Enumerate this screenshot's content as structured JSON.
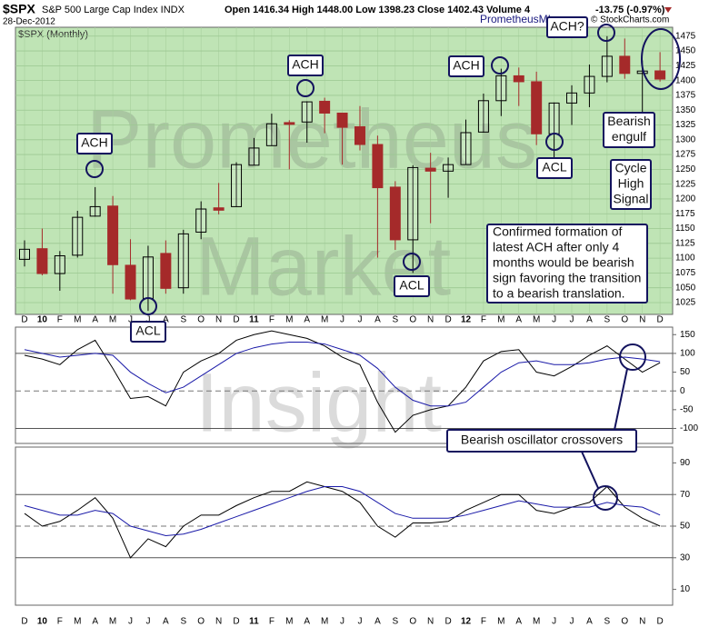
{
  "header": {
    "symbol": "$SPX",
    "name": "S&P 500 Large Cap Index INDX",
    "date": "28-Dec-2012",
    "quote": "Open 1416.34  High 1448.00  Low 1398.23  Close 1402.43  Volume 4",
    "change": "-13.75 (-0.97%)",
    "site": "PrometheusMI.com",
    "credit": "© StockCharts.com"
  },
  "watermark": [
    "Prometheus",
    "Market",
    "Insight"
  ],
  "annotations": [
    [
      "ACH"
    ],
    [
      "ACH"
    ],
    [
      "ACH"
    ],
    [
      "ACH?"
    ],
    [
      "ACL"
    ],
    [
      "ACL"
    ],
    [
      "ACL"
    ],
    [
      "Bearish",
      "engulf"
    ],
    [
      "Cycle",
      "High",
      "Signal"
    ],
    [
      "Confirmed formation of",
      "latest ACH after only 4",
      "months would be bearish",
      "sign favoring the transition",
      "to a bearish translation."
    ],
    [
      "Bearish oscillator crossovers"
    ]
  ],
  "chart_data": [
    {
      "type": "candlestick",
      "title": "$SPX (Monthly)",
      "categories": [
        "D",
        "10",
        "F",
        "M",
        "A",
        "M",
        "J",
        "J",
        "A",
        "S",
        "O",
        "N",
        "D",
        "11",
        "F",
        "M",
        "A",
        "M",
        "J",
        "J",
        "A",
        "S",
        "O",
        "N",
        "D",
        "12",
        "F",
        "M",
        "A",
        "M",
        "J",
        "J",
        "A",
        "S",
        "O",
        "N",
        "D"
      ],
      "open": [
        1098,
        1116,
        1074,
        1105,
        1171,
        1188,
        1088,
        1032,
        1108,
        1050,
        1144,
        1185,
        1187,
        1257,
        1290,
        1329,
        1330,
        1365,
        1345,
        1322,
        1292,
        1220,
        1131,
        1252,
        1247,
        1258,
        1313,
        1366,
        1408,
        1398,
        1310,
        1362,
        1379,
        1407,
        1441,
        1412,
        1416.34
      ],
      "high": [
        1130,
        1150,
        1112,
        1180,
        1220,
        1205,
        1132,
        1121,
        1130,
        1148,
        1196,
        1227,
        1262,
        1303,
        1344,
        1333,
        1365,
        1371,
        1345,
        1357,
        1307,
        1230,
        1257,
        1278,
        1270,
        1334,
        1378,
        1420,
        1422,
        1415,
        1363,
        1392,
        1427,
        1475,
        1471,
        1434,
        1448
      ],
      "low": [
        1086,
        1071,
        1045,
        1101,
        1170,
        1040,
        1029,
        1011,
        1040,
        1040,
        1132,
        1174,
        1187,
        1257,
        1290,
        1250,
        1295,
        1311,
        1258,
        1282,
        1101,
        1114,
        1075,
        1159,
        1202,
        1258,
        1312,
        1340,
        1357,
        1291,
        1267,
        1325,
        1355,
        1397,
        1403,
        1343,
        1398.23
      ],
      "close": [
        1115,
        1074,
        1104,
        1169,
        1187,
        1089,
        1031,
        1102,
        1049,
        1141,
        1183,
        1181,
        1258,
        1286,
        1327,
        1326,
        1364,
        1345,
        1321,
        1292,
        1219,
        1131,
        1253,
        1247,
        1258,
        1312,
        1366,
        1408,
        1398,
        1310,
        1362,
        1379,
        1407,
        1441,
        1412,
        1416,
        1402.43
      ],
      "up_color": "#ffffff",
      "down_color": "#a52a2a",
      "background": "#bfe4b5",
      "ylim": [
        1005,
        1490
      ],
      "yticks": [
        1025,
        1050,
        1075,
        1100,
        1125,
        1150,
        1175,
        1200,
        1225,
        1250,
        1275,
        1300,
        1325,
        1350,
        1375,
        1400,
        1425,
        1450,
        1475
      ]
    },
    {
      "type": "line",
      "series": [
        {
          "color": "#000000",
          "values": [
            95,
            85,
            70,
            110,
            135,
            60,
            -20,
            -15,
            -40,
            50,
            80,
            100,
            135,
            150,
            160,
            150,
            140,
            120,
            90,
            70,
            -30,
            -110,
            -65,
            -50,
            -40,
            10,
            80,
            105,
            110,
            50,
            40,
            65,
            95,
            120,
            85,
            50,
            75
          ]
        },
        {
          "color": "#1a1aa8",
          "values": [
            110,
            100,
            90,
            95,
            100,
            95,
            50,
            20,
            -5,
            10,
            40,
            70,
            100,
            115,
            125,
            130,
            130,
            125,
            110,
            95,
            60,
            10,
            -25,
            -40,
            -40,
            -30,
            10,
            50,
            75,
            80,
            70,
            70,
            75,
            85,
            90,
            85,
            78
          ]
        }
      ],
      "ylim": [
        -140,
        170
      ],
      "yticks": [
        -100,
        -50,
        0,
        50,
        100,
        150
      ],
      "reference_lines": [
        -100,
        100
      ],
      "center_line": 0
    },
    {
      "type": "line",
      "series": [
        {
          "color": "#000000",
          "values": [
            58,
            50,
            53,
            60,
            68,
            55,
            30,
            42,
            37,
            50,
            57,
            57,
            63,
            68,
            72,
            72,
            78,
            75,
            72,
            65,
            50,
            43,
            52,
            52,
            53,
            60,
            65,
            70,
            70,
            60,
            58,
            62,
            65,
            75,
            62,
            55,
            50
          ]
        },
        {
          "color": "#1a1aa8",
          "values": [
            63,
            60,
            57,
            57,
            60,
            58,
            50,
            47,
            44,
            45,
            48,
            52,
            56,
            60,
            64,
            68,
            72,
            75,
            75,
            72,
            65,
            58,
            55,
            55,
            55,
            57,
            60,
            63,
            66,
            64,
            62,
            62,
            62,
            65,
            63,
            62,
            57
          ]
        }
      ],
      "ylim": [
        0,
        100
      ],
      "yticks": [
        10,
        30,
        50,
        70,
        90
      ],
      "reference_lines": [
        30,
        70
      ],
      "center_line": 50
    }
  ]
}
